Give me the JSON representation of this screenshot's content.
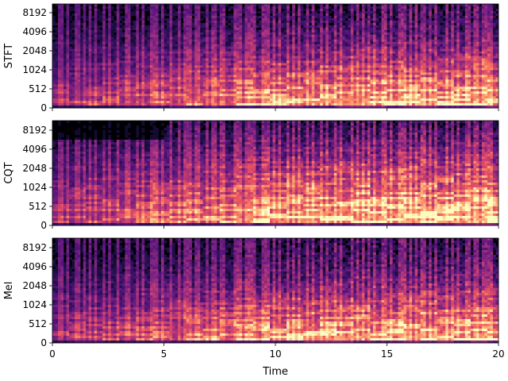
{
  "chart_data": {
    "type": "heatmap",
    "colormap": "magma",
    "shared_x": {
      "label": "Time",
      "range": [
        0,
        20
      ],
      "ticks": [
        0,
        5,
        10,
        15,
        20
      ],
      "tick_labels": [
        "0",
        "5",
        "10",
        "15",
        "20"
      ]
    },
    "panels": [
      {
        "ylabel": "STFT",
        "y_ticks": [
          0,
          512,
          1024,
          2048,
          4096,
          8192
        ],
        "y_tick_labels": [
          "0",
          "512",
          "1024",
          "2048",
          "4096",
          "8192"
        ]
      },
      {
        "ylabel": "CQT",
        "y_ticks": [
          0,
          512,
          1024,
          2048,
          4096,
          8192
        ],
        "y_tick_labels": [
          "0",
          "512",
          "1024",
          "2048",
          "4096",
          "8192"
        ]
      },
      {
        "ylabel": "Mel",
        "y_ticks": [
          0,
          512,
          1024,
          2048,
          4096,
          8192
        ],
        "y_tick_labels": [
          "0",
          "512",
          "1024",
          "2048",
          "4096",
          "8192"
        ]
      }
    ]
  }
}
